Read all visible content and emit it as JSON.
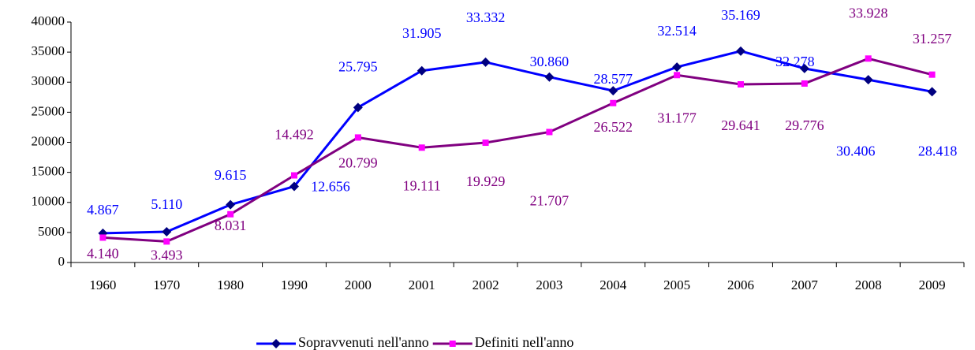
{
  "chart_data": {
    "type": "line",
    "categories": [
      "1960",
      "1970",
      "1980",
      "1990",
      "2000",
      "2001",
      "2002",
      "2003",
      "2004",
      "2005",
      "2006",
      "2007",
      "2008",
      "2009"
    ],
    "series": [
      {
        "name": "Sopravvenuti nell'anno",
        "color": "#0000ff",
        "marker_color": "#000080",
        "values": [
          4867,
          5110,
          9615,
          12656,
          25795,
          31905,
          33332,
          30860,
          28577,
          32514,
          35169,
          32278,
          30406,
          28418
        ],
        "value_labels": [
          "4.867",
          "5.110",
          "9.615",
          "12.656",
          "25.795",
          "31.905",
          "33.332",
          "30.860",
          "28.577",
          "32.514",
          "35.169",
          "32.278",
          "30.406",
          "28.418"
        ]
      },
      {
        "name": "Definiti nell'anno",
        "color": "#800080",
        "marker_color": "#ff00ff",
        "values": [
          4140,
          3493,
          8031,
          14492,
          20799,
          19111,
          19929,
          21707,
          26522,
          31177,
          29641,
          29776,
          33928,
          31257
        ],
        "value_labels": [
          "4.140",
          "3.493",
          "8.031",
          "14.492",
          "20.799",
          "19.111",
          "19.929",
          "21.707",
          "26.522",
          "31.177",
          "29.641",
          "29.776",
          "33.928",
          "31.257"
        ]
      }
    ],
    "ylim": [
      0,
      40000
    ],
    "yticks": [
      0,
      5000,
      10000,
      15000,
      20000,
      25000,
      30000,
      35000,
      40000
    ],
    "legend": "bottom"
  }
}
